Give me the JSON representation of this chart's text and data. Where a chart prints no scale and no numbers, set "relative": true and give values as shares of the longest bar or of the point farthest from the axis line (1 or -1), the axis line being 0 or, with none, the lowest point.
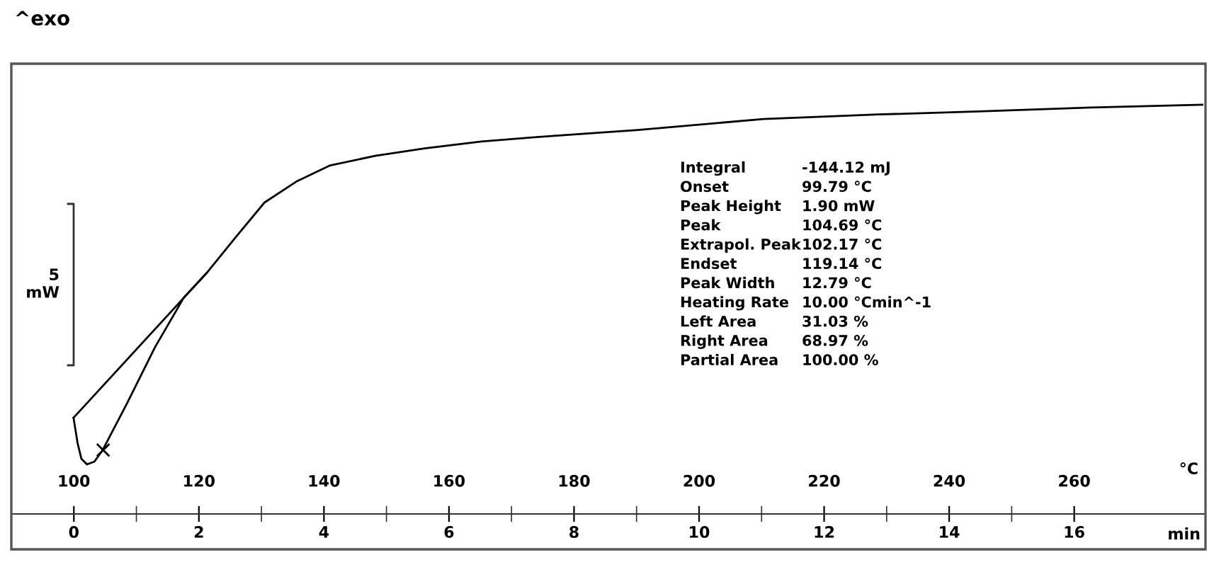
{
  "chart_data": {
    "type": "line",
    "title": "^exo",
    "relative": true,
    "xlabel": "°C",
    "x2label": "min",
    "xlim": [
      90,
      281
    ],
    "xticks": [
      100,
      120,
      140,
      160,
      180,
      200,
      220,
      240,
      260
    ],
    "x2lim": [
      -1,
      18.1
    ],
    "x2ticks": [
      0,
      2,
      4,
      6,
      8,
      10,
      12,
      14,
      16
    ],
    "grid": false,
    "series": [
      {
        "color": "#000000",
        "x": [
          99.95,
          100.6,
          101.2,
          102.1,
          103.3,
          104.6,
          108.5,
          113.0,
          117.6,
          121.2,
          126.0,
          130.5,
          135.7,
          140.9,
          148.2,
          156.1,
          165.2,
          176.8,
          190.2,
          210.3,
          228.7,
          243.9,
          262.7,
          280.5
        ],
        "values": [
          0.235,
          0.173,
          0.135,
          0.121,
          0.128,
          0.156,
          0.27,
          0.408,
          0.529,
          0.588,
          0.678,
          0.761,
          0.813,
          0.851,
          0.875,
          0.893,
          0.91,
          0.924,
          0.938,
          0.965,
          0.976,
          0.983,
          0.993,
          1.0
        ]
      },
      {
        "color": "#000000",
        "x": [
          99.95,
          121.2
        ],
        "values": [
          0.235,
          0.588
        ]
      },
      {
        "type": "scatter",
        "color": "#000000",
        "marker": "cross",
        "x": [
          104.69
        ],
        "values": [
          0.156
        ]
      }
    ],
    "annotations": [
      "5\nmW",
      "Integral",
      "-144.12 mJ",
      "Onset",
      "99.79 °C",
      "Peak Height",
      "1.90 mW",
      "Peak",
      "104.69 °C",
      "Extrapol. Peak",
      "102.17 °C",
      "Endset",
      "119.14 °C",
      "Peak Width",
      "12.79 °C",
      "Heating Rate",
      "10.00 °Cmin^-1",
      "Left Area",
      "31.03 %",
      "Right Area",
      "68.97 %",
      "Partial Area",
      "100.00 %"
    ]
  }
}
